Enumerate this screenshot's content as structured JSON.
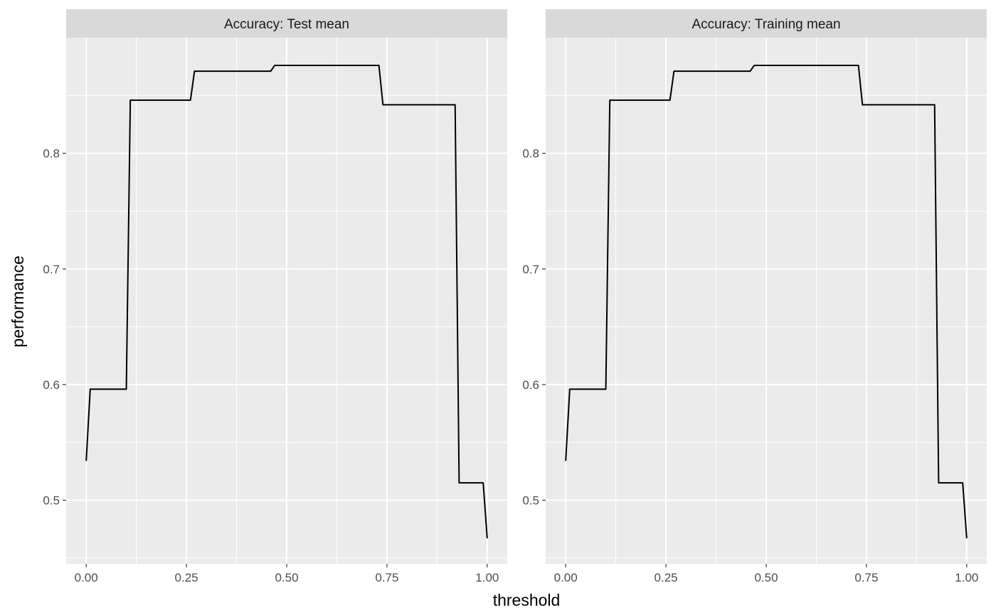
{
  "chart_data": {
    "type": "line",
    "xlabel": "threshold",
    "ylabel": "performance",
    "xlim": [
      -0.05,
      1.05
    ],
    "ylim": [
      0.445,
      0.9
    ],
    "x_ticks": [
      0,
      0.25,
      0.5,
      0.75,
      1
    ],
    "x_tick_labels": [
      "0.00",
      "0.25",
      "0.50",
      "0.75",
      "1.00"
    ],
    "y_ticks": [
      0.5,
      0.6,
      0.7,
      0.8
    ],
    "y_tick_labels": [
      "0.5",
      "0.6",
      "0.7",
      "0.8"
    ],
    "grid": true,
    "line_color": "#000000",
    "panel_background": "#ebebeb",
    "strip_background": "#d9d9d9",
    "panels": [
      {
        "title": "Accuracy: Test mean",
        "x": [
          0,
          0.01,
          0.02,
          0.03,
          0.04,
          0.05,
          0.06,
          0.07,
          0.08,
          0.09,
          0.1,
          0.11,
          0.12,
          0.13,
          0.14,
          0.15,
          0.16,
          0.17,
          0.18,
          0.19,
          0.2,
          0.21,
          0.22,
          0.23,
          0.24,
          0.25,
          0.26,
          0.27,
          0.28,
          0.29,
          0.3,
          0.31,
          0.32,
          0.33,
          0.34,
          0.35,
          0.36,
          0.37,
          0.38,
          0.39,
          0.4,
          0.41,
          0.42,
          0.43,
          0.44,
          0.45,
          0.46,
          0.47,
          0.48,
          0.49,
          0.5,
          0.51,
          0.52,
          0.53,
          0.54,
          0.55,
          0.56,
          0.57,
          0.58,
          0.59,
          0.6,
          0.61,
          0.62,
          0.63,
          0.64,
          0.65,
          0.66,
          0.67,
          0.68,
          0.69,
          0.7,
          0.71,
          0.72,
          0.73,
          0.74,
          0.75,
          0.76,
          0.77,
          0.78,
          0.79,
          0.8,
          0.81,
          0.82,
          0.83,
          0.84,
          0.85,
          0.86,
          0.87,
          0.88,
          0.89,
          0.9,
          0.91,
          0.92,
          0.93,
          0.94,
          0.95,
          0.96,
          0.97,
          0.98,
          0.99,
          1.0
        ],
        "y": [
          0.534,
          0.596,
          0.596,
          0.596,
          0.596,
          0.596,
          0.596,
          0.596,
          0.596,
          0.596,
          0.596,
          0.846,
          0.846,
          0.846,
          0.846,
          0.846,
          0.846,
          0.846,
          0.846,
          0.846,
          0.846,
          0.846,
          0.846,
          0.846,
          0.846,
          0.846,
          0.846,
          0.871,
          0.871,
          0.871,
          0.871,
          0.871,
          0.871,
          0.871,
          0.871,
          0.871,
          0.871,
          0.871,
          0.871,
          0.871,
          0.871,
          0.871,
          0.871,
          0.871,
          0.871,
          0.871,
          0.871,
          0.876,
          0.876,
          0.876,
          0.876,
          0.876,
          0.876,
          0.876,
          0.876,
          0.876,
          0.876,
          0.876,
          0.876,
          0.876,
          0.876,
          0.876,
          0.876,
          0.876,
          0.876,
          0.876,
          0.876,
          0.876,
          0.876,
          0.876,
          0.876,
          0.876,
          0.876,
          0.876,
          0.842,
          0.842,
          0.842,
          0.842,
          0.842,
          0.842,
          0.842,
          0.842,
          0.842,
          0.842,
          0.842,
          0.842,
          0.842,
          0.842,
          0.842,
          0.842,
          0.842,
          0.842,
          0.842,
          0.515,
          0.515,
          0.515,
          0.515,
          0.515,
          0.515,
          0.515,
          0.467
        ]
      },
      {
        "title": "Accuracy: Training mean",
        "x": [
          0,
          0.01,
          0.02,
          0.03,
          0.04,
          0.05,
          0.06,
          0.07,
          0.08,
          0.09,
          0.1,
          0.11,
          0.12,
          0.13,
          0.14,
          0.15,
          0.16,
          0.17,
          0.18,
          0.19,
          0.2,
          0.21,
          0.22,
          0.23,
          0.24,
          0.25,
          0.26,
          0.27,
          0.28,
          0.29,
          0.3,
          0.31,
          0.32,
          0.33,
          0.34,
          0.35,
          0.36,
          0.37,
          0.38,
          0.39,
          0.4,
          0.41,
          0.42,
          0.43,
          0.44,
          0.45,
          0.46,
          0.47,
          0.48,
          0.49,
          0.5,
          0.51,
          0.52,
          0.53,
          0.54,
          0.55,
          0.56,
          0.57,
          0.58,
          0.59,
          0.6,
          0.61,
          0.62,
          0.63,
          0.64,
          0.65,
          0.66,
          0.67,
          0.68,
          0.69,
          0.7,
          0.71,
          0.72,
          0.73,
          0.74,
          0.75,
          0.76,
          0.77,
          0.78,
          0.79,
          0.8,
          0.81,
          0.82,
          0.83,
          0.84,
          0.85,
          0.86,
          0.87,
          0.88,
          0.89,
          0.9,
          0.91,
          0.92,
          0.93,
          0.94,
          0.95,
          0.96,
          0.97,
          0.98,
          0.99,
          1.0
        ],
        "y": [
          0.534,
          0.596,
          0.596,
          0.596,
          0.596,
          0.596,
          0.596,
          0.596,
          0.596,
          0.596,
          0.596,
          0.846,
          0.846,
          0.846,
          0.846,
          0.846,
          0.846,
          0.846,
          0.846,
          0.846,
          0.846,
          0.846,
          0.846,
          0.846,
          0.846,
          0.846,
          0.846,
          0.871,
          0.871,
          0.871,
          0.871,
          0.871,
          0.871,
          0.871,
          0.871,
          0.871,
          0.871,
          0.871,
          0.871,
          0.871,
          0.871,
          0.871,
          0.871,
          0.871,
          0.871,
          0.871,
          0.871,
          0.876,
          0.876,
          0.876,
          0.876,
          0.876,
          0.876,
          0.876,
          0.876,
          0.876,
          0.876,
          0.876,
          0.876,
          0.876,
          0.876,
          0.876,
          0.876,
          0.876,
          0.876,
          0.876,
          0.876,
          0.876,
          0.876,
          0.876,
          0.876,
          0.876,
          0.876,
          0.876,
          0.842,
          0.842,
          0.842,
          0.842,
          0.842,
          0.842,
          0.842,
          0.842,
          0.842,
          0.842,
          0.842,
          0.842,
          0.842,
          0.842,
          0.842,
          0.842,
          0.842,
          0.842,
          0.842,
          0.515,
          0.515,
          0.515,
          0.515,
          0.515,
          0.515,
          0.515,
          0.467
        ]
      }
    ]
  }
}
